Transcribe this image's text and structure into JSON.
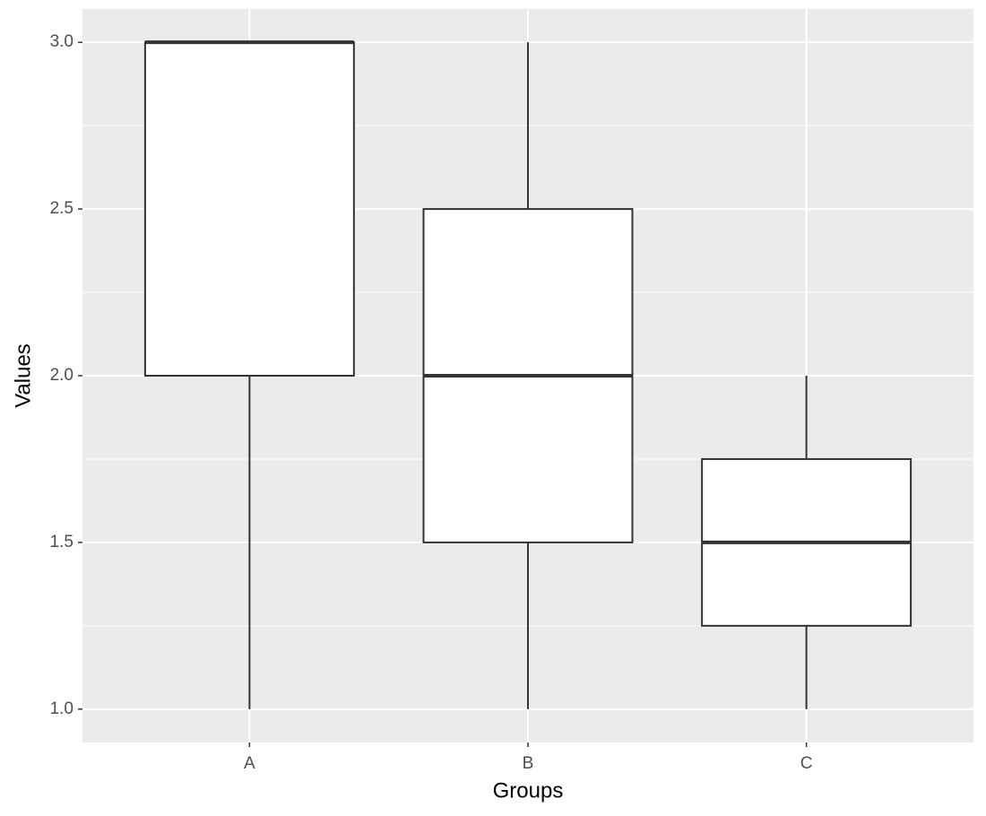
{
  "chart_data": {
    "type": "boxplot",
    "x_label": "Groups",
    "y_label": "Values",
    "categories": [
      "A",
      "B",
      "C"
    ],
    "min": [
      1,
      1,
      1
    ],
    "q1": [
      2,
      1.5,
      1.25
    ],
    "median": [
      3,
      2,
      1.5
    ],
    "q3": [
      3,
      2.5,
      1.75
    ],
    "max": [
      3,
      3,
      2
    ],
    "box_fill": "#ffffff",
    "box_stroke": "#333333",
    "panel_background": "#ebebeb",
    "grid": true,
    "ylim": [
      0.9,
      3.1
    ],
    "yticks": [
      {
        "value": 1,
        "label": "1.0"
      },
      {
        "value": 1.5,
        "label": "1.5"
      },
      {
        "value": 2,
        "label": "2.0"
      },
      {
        "value": 2.5,
        "label": "2.5"
      },
      {
        "value": 3,
        "label": "3.0"
      }
    ],
    "y_minor_grid": [
      1.25,
      1.75,
      2.25,
      2.75
    ]
  }
}
